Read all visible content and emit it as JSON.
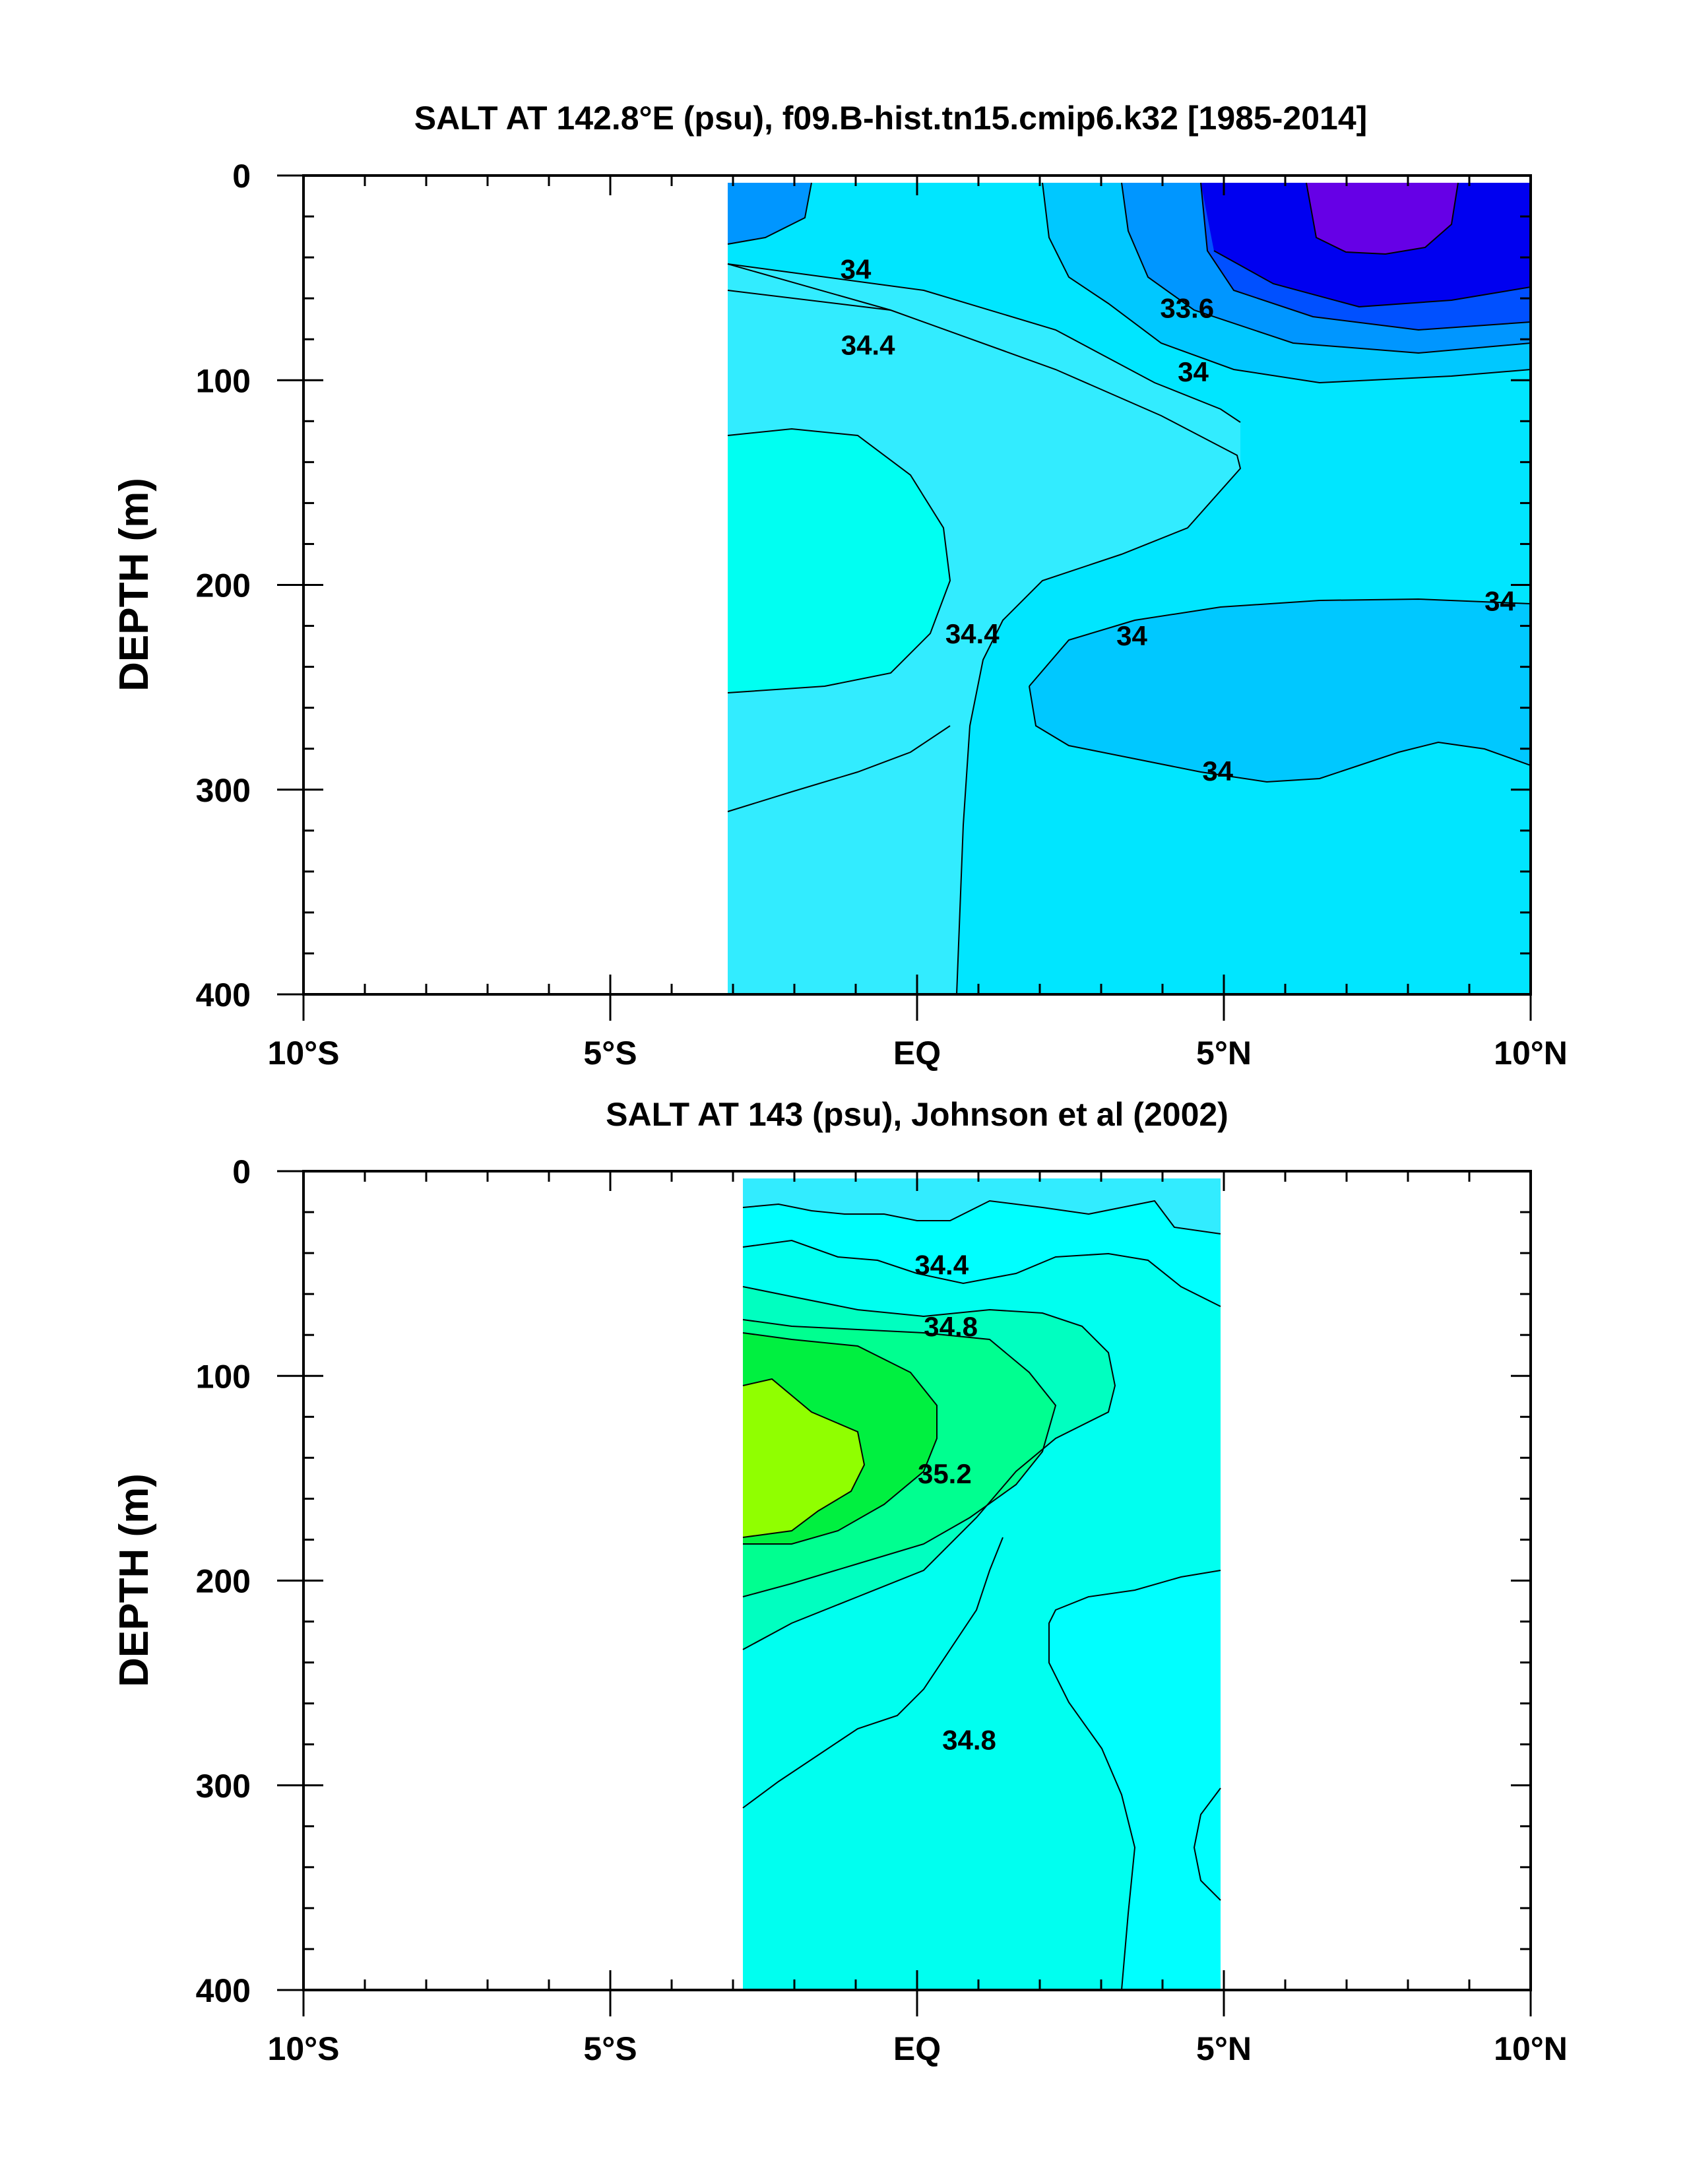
{
  "chart_data": [
    {
      "type": "contour",
      "title": "SALT AT 142.8°E (psu), f09.B-hist.tn15.cmip6.k32 [1985-2014]",
      "ylabel": "DEPTH (m)",
      "xlabel": "",
      "xlim": [
        -10,
        10
      ],
      "ylim": [
        400,
        0
      ],
      "y_inverted": true,
      "x_ticks": [
        -10,
        -5,
        0,
        5,
        10
      ],
      "x_tick_labels": [
        "10°S",
        "5°S",
        "EQ",
        "5°N",
        "10°N"
      ],
      "y_ticks": [
        0,
        100,
        200,
        300,
        400
      ],
      "y_tick_labels": [
        "0",
        "100",
        "200",
        "300",
        "400"
      ],
      "data_extent": {
        "x": [
          -3.1,
          10
        ],
        "y": [
          5,
          400
        ]
      },
      "contour_labels": [
        {
          "text": "34",
          "x": -1.0,
          "y": 46
        },
        {
          "text": "34.4",
          "x": -0.8,
          "y": 83
        },
        {
          "text": "33.6",
          "x": 4.4,
          "y": 65
        },
        {
          "text": "34",
          "x": 4.5,
          "y": 96
        },
        {
          "text": "34.4",
          "x": 0.9,
          "y": 224
        },
        {
          "text": "34",
          "x": 3.5,
          "y": 225
        },
        {
          "text": "34",
          "x": 9.5,
          "y": 208
        },
        {
          "text": "34",
          "x": 4.9,
          "y": 291
        }
      ],
      "fill_colors": [
        "#00e6ff",
        "#32ecff",
        "#00fff2",
        "#00c8ff",
        "#0096ff",
        "#0050ff",
        "#0000f0",
        "#6600e6"
      ]
    },
    {
      "type": "contour",
      "title": "SALT AT 143 (psu), Johnson et al (2002)",
      "ylabel": "DEPTH (m)",
      "xlabel": "",
      "xlim": [
        -10,
        10
      ],
      "ylim": [
        400,
        0
      ],
      "y_inverted": true,
      "x_ticks": [
        -10,
        -5,
        0,
        5,
        10
      ],
      "x_tick_labels": [
        "10°S",
        "5°S",
        "EQ",
        "5°N",
        "10°N"
      ],
      "y_ticks": [
        0,
        100,
        200,
        300,
        400
      ],
      "y_tick_labels": [
        "0",
        "100",
        "200",
        "300",
        "400"
      ],
      "data_extent": {
        "x": [
          -2.8,
          5
        ],
        "y": [
          5,
          400
        ]
      },
      "contour_labels": [
        {
          "text": "34.4",
          "x": 0.4,
          "y": 46
        },
        {
          "text": "34.8",
          "x": 0.55,
          "y": 76
        },
        {
          "text": "35.2",
          "x": 0.45,
          "y": 148
        },
        {
          "text": "34.8",
          "x": 0.85,
          "y": 278
        }
      ],
      "fill_colors": [
        "#00fff0",
        "#00ffc0",
        "#00ff90",
        "#00f040",
        "#90ff00",
        "#00ffff",
        "#32ecff"
      ]
    }
  ]
}
